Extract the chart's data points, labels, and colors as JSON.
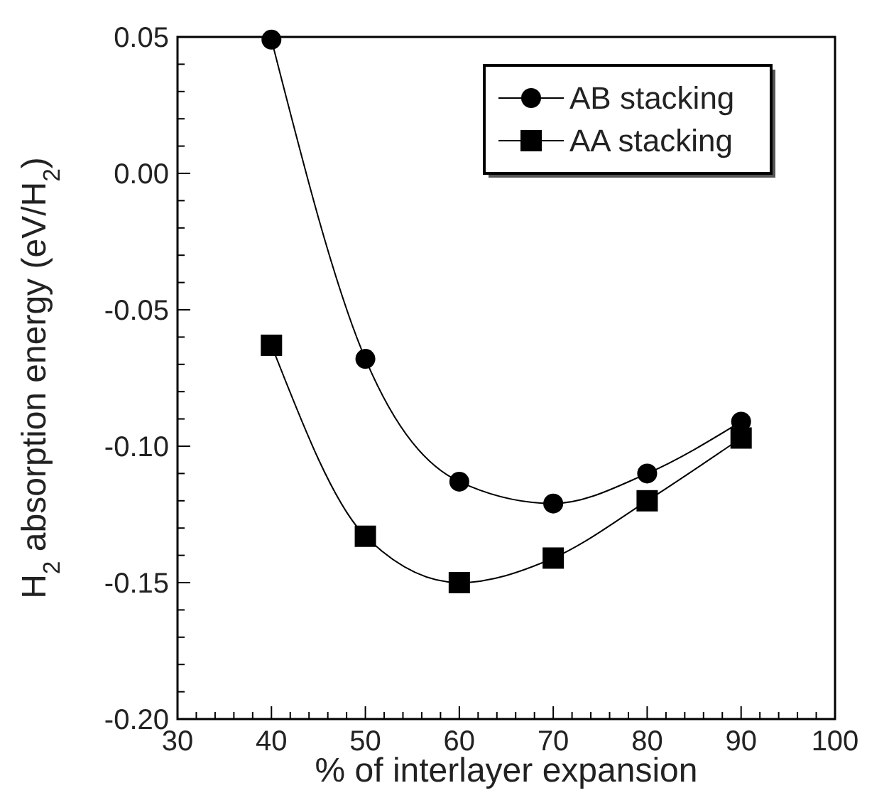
{
  "chart_data": {
    "type": "line",
    "xlabel": "% of interlayer expansion",
    "ylabel": "H$_{2}$ absorption energy (eV/H$_{2}$)",
    "x": [
      40,
      50,
      60,
      70,
      80,
      90
    ],
    "xlim": [
      30,
      100
    ],
    "xticks": [
      30,
      40,
      50,
      60,
      70,
      80,
      90,
      100
    ],
    "ylim": [
      -0.2,
      0.05
    ],
    "yticks": [
      {
        "value": -0.2,
        "label": "-0.20"
      },
      {
        "value": -0.15,
        "label": "-0.15"
      },
      {
        "value": -0.1,
        "label": "-0.10"
      },
      {
        "value": -0.05,
        "label": "-0.05"
      },
      {
        "value": 0,
        "label": "0.00"
      },
      {
        "value": 0.05,
        "label": "0.05"
      }
    ],
    "legend": "top right",
    "grid": false,
    "line_style": "solid",
    "series": [
      {
        "name": "AB stacking",
        "color": "#000000",
        "marker": "circle",
        "values": [
          0.049,
          -0.068,
          -0.113,
          -0.121,
          -0.11,
          -0.091
        ]
      },
      {
        "name": "AA stacking",
        "color": "#000000",
        "marker": "square",
        "values": [
          -0.063,
          -0.133,
          -0.15,
          -0.141,
          -0.12,
          -0.097
        ]
      }
    ]
  }
}
